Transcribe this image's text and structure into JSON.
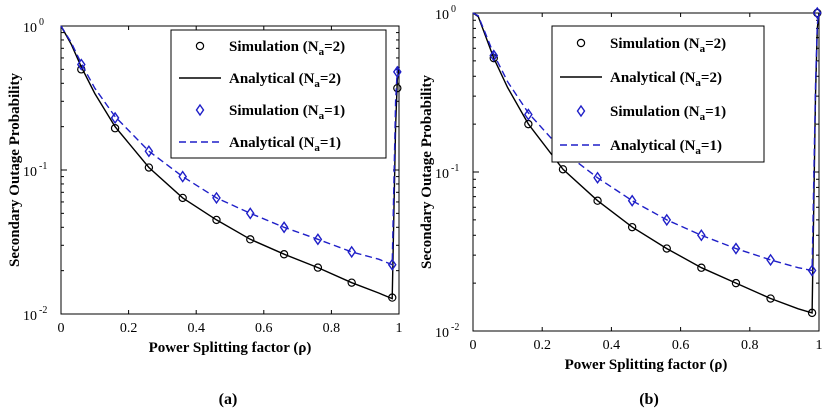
{
  "chart_data": [
    {
      "type": "line",
      "panel": "(a)",
      "xlabel": "Power Splitting factor (ρ)",
      "ylabel": "Secondary Outage Probability",
      "xlim": [
        0,
        1
      ],
      "ylim": [
        0.01,
        1
      ],
      "yscale": "log",
      "x_ticks": [
        "0",
        "0.2",
        "0.4",
        "0.6",
        "0.8",
        "1"
      ],
      "y_ticks": [
        {
          "base": "10",
          "exp": "0"
        },
        {
          "base": "10",
          "exp": "-1"
        },
        {
          "base": "10",
          "exp": "-2"
        }
      ],
      "legend": [
        {
          "text": "Simulation (N",
          "sub": "a",
          "tail": "=2)",
          "style": "black-circle"
        },
        {
          "text": "Analytical (N",
          "sub": "a",
          "tail": "=2)",
          "style": "black-solid"
        },
        {
          "text": "Simulation (N",
          "sub": "a",
          "tail": "=1)",
          "style": "blue-diamond"
        },
        {
          "text": "Analytical (N",
          "sub": "a",
          "tail": "=1)",
          "style": "blue-dashed"
        }
      ],
      "series": [
        {
          "name": "Simulation (Na=2)",
          "x": [
            0.06,
            0.16,
            0.26,
            0.36,
            0.46,
            0.56,
            0.66,
            0.76,
            0.86,
            0.98,
            0.995
          ],
          "y": [
            0.5,
            0.195,
            0.104,
            0.064,
            0.045,
            0.033,
            0.026,
            0.021,
            0.0165,
            0.013,
            0.37
          ]
        },
        {
          "name": "Analytical (Na=2)",
          "x": [
            0,
            0.03,
            0.06,
            0.1,
            0.16,
            0.26,
            0.36,
            0.46,
            0.56,
            0.66,
            0.76,
            0.86,
            0.94,
            0.98,
            0.99,
            0.995,
            1.0
          ],
          "y": [
            1.0,
            0.75,
            0.52,
            0.34,
            0.2,
            0.104,
            0.064,
            0.045,
            0.033,
            0.026,
            0.021,
            0.0165,
            0.014,
            0.0128,
            0.2,
            0.42,
            0.52
          ]
        },
        {
          "name": "Simulation (Na=1)",
          "x": [
            0.06,
            0.16,
            0.26,
            0.36,
            0.46,
            0.56,
            0.66,
            0.76,
            0.86,
            0.98,
            0.995
          ],
          "y": [
            0.54,
            0.23,
            0.135,
            0.09,
            0.064,
            0.05,
            0.04,
            0.033,
            0.027,
            0.022,
            0.48
          ]
        },
        {
          "name": "Analytical (Na=1)",
          "x": [
            0,
            0.03,
            0.06,
            0.1,
            0.16,
            0.26,
            0.36,
            0.46,
            0.56,
            0.66,
            0.76,
            0.86,
            0.94,
            0.98,
            0.99,
            0.995,
            1.0
          ],
          "y": [
            1.0,
            0.77,
            0.55,
            0.37,
            0.235,
            0.135,
            0.09,
            0.064,
            0.05,
            0.04,
            0.033,
            0.027,
            0.024,
            0.022,
            0.3,
            0.5,
            0.55
          ]
        }
      ]
    },
    {
      "type": "line",
      "panel": "(b)",
      "xlabel": "Power Splitting factor (ρ)",
      "ylabel": "Secondary Outage Probability",
      "xlim": [
        0,
        1
      ],
      "ylim": [
        0.01,
        1
      ],
      "yscale": "log",
      "x_ticks": [
        "0",
        "0.2",
        "0.4",
        "0.6",
        "0.8",
        "1"
      ],
      "y_ticks": [
        {
          "base": "10",
          "exp": "0"
        },
        {
          "base": "10",
          "exp": "-1"
        },
        {
          "base": "10",
          "exp": "-2"
        }
      ],
      "legend": [
        {
          "text": "Simulation (N",
          "sub": "a",
          "tail": "=2)",
          "style": "black-circle"
        },
        {
          "text": "Analytical (N",
          "sub": "a",
          "tail": "=2)",
          "style": "black-solid"
        },
        {
          "text": "Simulation (N",
          "sub": "a",
          "tail": "=1)",
          "style": "blue-diamond"
        },
        {
          "text": "Analytical (N",
          "sub": "a",
          "tail": "=1)",
          "style": "blue-dashed"
        }
      ],
      "series": [
        {
          "name": "Simulation (Na=2)",
          "x": [
            0.06,
            0.16,
            0.26,
            0.36,
            0.46,
            0.56,
            0.66,
            0.76,
            0.86,
            0.98,
            0.995
          ],
          "y": [
            0.52,
            0.2,
            0.104,
            0.066,
            0.045,
            0.033,
            0.025,
            0.02,
            0.016,
            0.013,
            1.0
          ]
        },
        {
          "name": "Analytical (Na=2)",
          "x": [
            0,
            0.015,
            0.03,
            0.06,
            0.1,
            0.16,
            0.26,
            0.36,
            0.46,
            0.56,
            0.66,
            0.76,
            0.86,
            0.94,
            0.98,
            0.99,
            0.995,
            1.0
          ],
          "y": [
            1.0,
            0.95,
            0.78,
            0.52,
            0.34,
            0.2,
            0.104,
            0.066,
            0.045,
            0.033,
            0.025,
            0.02,
            0.016,
            0.0138,
            0.013,
            0.3,
            0.8,
            1.0
          ]
        },
        {
          "name": "Simulation (Na=1)",
          "x": [
            0.06,
            0.16,
            0.26,
            0.36,
            0.46,
            0.56,
            0.66,
            0.76,
            0.86,
            0.98,
            0.995
          ],
          "y": [
            0.54,
            0.23,
            0.135,
            0.092,
            0.066,
            0.05,
            0.04,
            0.033,
            0.028,
            0.024,
            1.0
          ]
        },
        {
          "name": "Analytical (Na=1)",
          "x": [
            0,
            0.015,
            0.03,
            0.06,
            0.1,
            0.16,
            0.26,
            0.36,
            0.46,
            0.56,
            0.66,
            0.76,
            0.86,
            0.94,
            0.98,
            0.99,
            0.995,
            1.0
          ],
          "y": [
            1.0,
            0.96,
            0.8,
            0.55,
            0.37,
            0.235,
            0.135,
            0.092,
            0.066,
            0.05,
            0.04,
            0.033,
            0.028,
            0.025,
            0.024,
            0.35,
            0.85,
            1.0
          ]
        }
      ]
    }
  ],
  "captions": [
    "(a)",
    "(b)"
  ],
  "colors": {
    "black": "#000000",
    "blue": "#1f1fc8"
  }
}
